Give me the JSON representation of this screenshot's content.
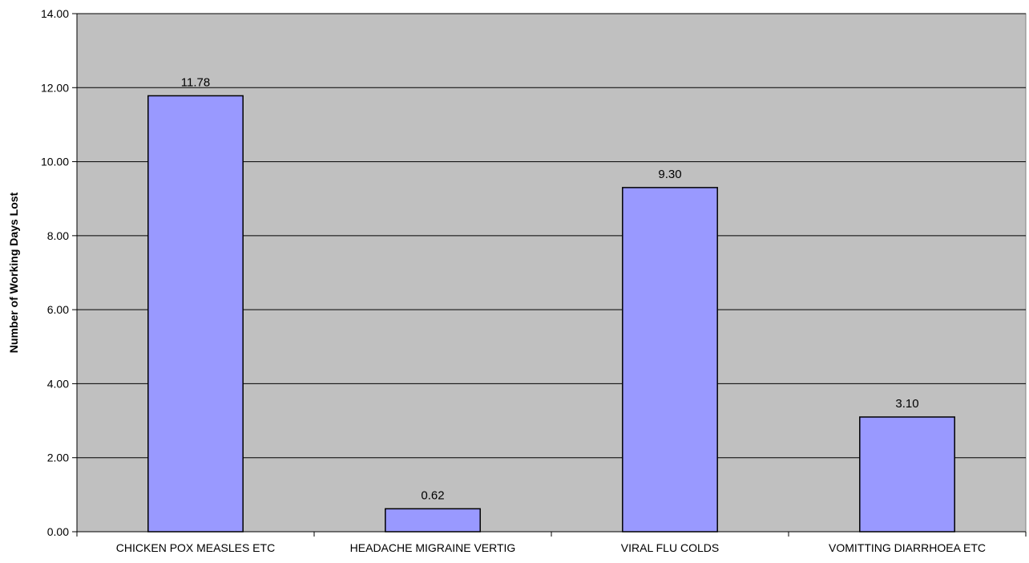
{
  "chart_data": {
    "type": "bar",
    "title": "",
    "xlabel": "",
    "ylabel": "Number of Working Days Lost",
    "categories": [
      "CHICKEN POX MEASLES ETC",
      "HEADACHE MIGRAINE VERTIG",
      "VIRAL FLU COLDS",
      "VOMITTING DIARRHOEA ETC"
    ],
    "values": [
      11.78,
      0.62,
      9.3,
      3.1
    ],
    "value_labels": [
      "11.78",
      "0.62",
      "9.30",
      "3.10"
    ],
    "ylim": [
      0,
      14
    ],
    "y_ticks": [
      0,
      2,
      4,
      6,
      8,
      10,
      12,
      14
    ],
    "y_tick_labels": [
      "0.00",
      "2.00",
      "4.00",
      "6.00",
      "8.00",
      "10.00",
      "12.00",
      "14.00"
    ],
    "grid": true,
    "legend": "none",
    "colors": {
      "plot_background": "#c0c0c0",
      "bar_fill": "#9999ff",
      "bar_stroke": "#000000",
      "gridline": "#000000"
    }
  }
}
